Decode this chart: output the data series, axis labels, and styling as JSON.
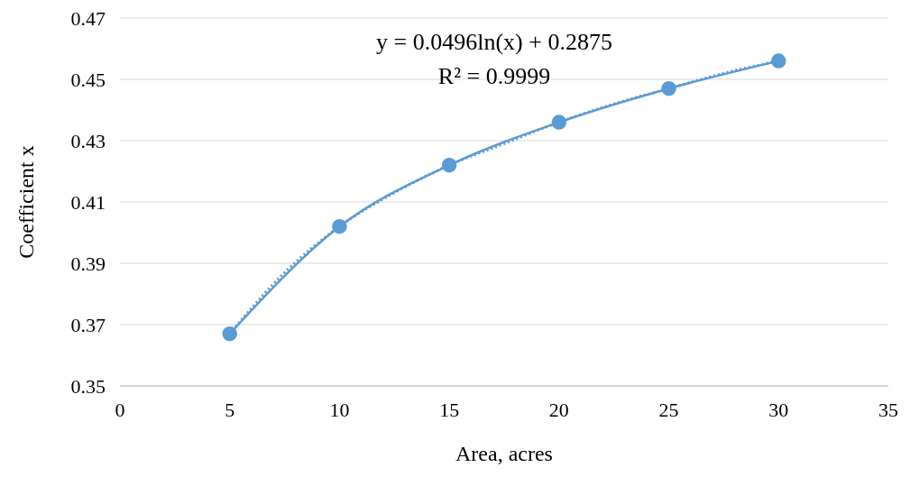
{
  "chart_data": {
    "type": "line",
    "xlabel": "Area, acres",
    "ylabel": "Coefficient x",
    "annotations": [
      "y = 0.0496ln(x) + 0.2875",
      "R² = 0.9999"
    ],
    "xlim": [
      0,
      35
    ],
    "xticks": [
      0,
      5,
      10,
      15,
      20,
      25,
      30,
      35
    ],
    "ylim": [
      0.35,
      0.47
    ],
    "yticks": [
      0.35,
      0.37,
      0.39,
      0.41,
      0.43,
      0.45,
      0.47
    ],
    "grid": "y",
    "marker": "circle",
    "series": [
      {
        "type": "line",
        "color": "#5b9bd5",
        "line_style": "solid",
        "x": [
          5,
          10,
          15,
          20,
          25,
          30
        ],
        "values": [
          0.367,
          0.402,
          0.422,
          0.436,
          0.447,
          0.456
        ]
      },
      {
        "type": "line",
        "color": "#5b9bd5",
        "line_style": "dotted",
        "marker": "none",
        "x": [
          5,
          7.5,
          10,
          12.5,
          15,
          17.5,
          20,
          22.5,
          25,
          27.5,
          30
        ],
        "values": [
          0.367,
          0.387,
          0.402,
          0.413,
          0.422,
          0.429,
          0.436,
          0.442,
          0.447,
          0.452,
          0.456
        ]
      }
    ]
  }
}
